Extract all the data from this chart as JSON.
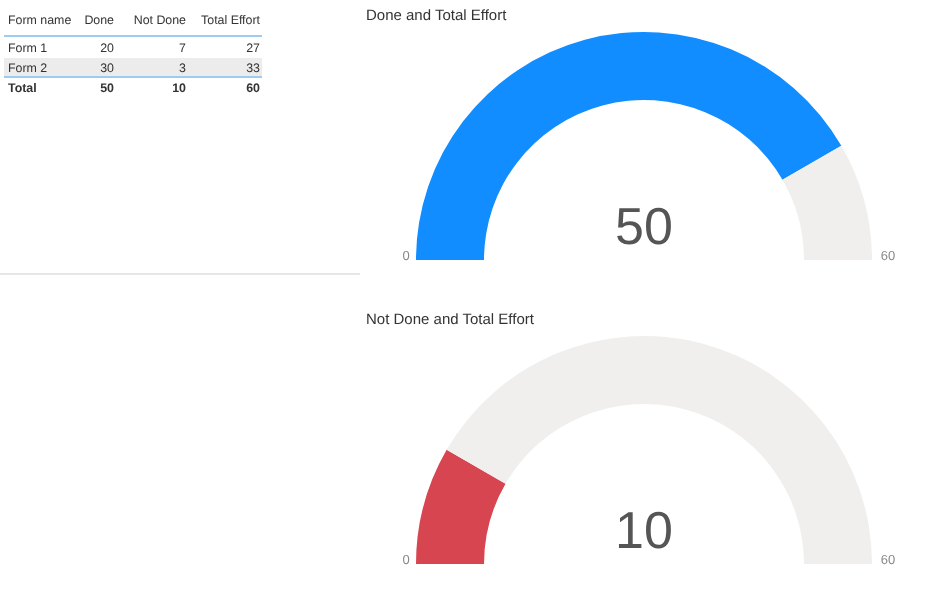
{
  "chart_data": [
    {
      "type": "other",
      "xlabel": "Form name",
      "categories": [
        "Form 1",
        "Form 2",
        "Total"
      ],
      "data_labels": true,
      "series": [
        {
          "name": "Done",
          "values": [
            20,
            30,
            50
          ]
        },
        {
          "name": "Not Done",
          "values": [
            7,
            3,
            10
          ]
        },
        {
          "name": "Total Effort",
          "values": [
            27,
            33,
            60
          ]
        }
      ]
    },
    {
      "type": "donut",
      "title": "Done and Total Effort",
      "categories": [
        null,
        null
      ],
      "values": [
        83.3,
        16.7
      ],
      "colors": [
        "#118dff",
        "#f0efee"
      ],
      "annotations": [
        "50",
        "0",
        "60"
      ]
    },
    {
      "type": "donut",
      "title": "Not Done and Total Effort",
      "categories": [
        null,
        null
      ],
      "values": [
        16.7,
        83.3
      ],
      "colors": [
        "#d64550",
        "#f0efee"
      ],
      "annotations": [
        "10",
        "0",
        "60"
      ]
    }
  ]
}
